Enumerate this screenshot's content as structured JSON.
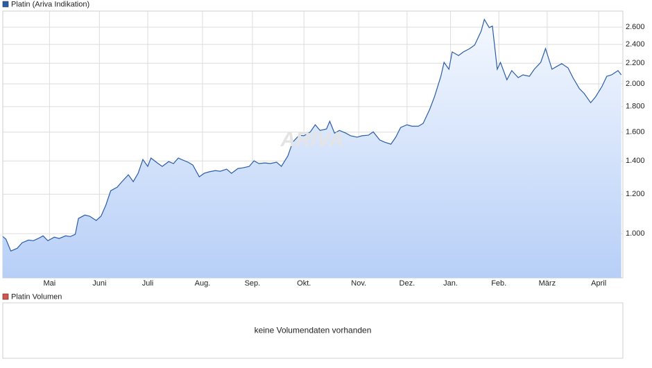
{
  "chart_data": {
    "type": "line",
    "log_scale": true,
    "grid": true,
    "watermark": "ARIVA",
    "series": [
      {
        "name": "Platin (Ariva Indikation)",
        "color": "#2a5ca8",
        "x": [
          0,
          2,
          5,
          9,
          12,
          16,
          19,
          22,
          25,
          28,
          32,
          35,
          39,
          42,
          45,
          47,
          51,
          54,
          58,
          61,
          64,
          67,
          71,
          74,
          78,
          81,
          84,
          87,
          90,
          92,
          96,
          99,
          103,
          106,
          109,
          111,
          115,
          118,
          122,
          125,
          128,
          132,
          135,
          139,
          142,
          146,
          149,
          153,
          156,
          159,
          163,
          166,
          170,
          173,
          177,
          180,
          184,
          187,
          191,
          194,
          197,
          201,
          203,
          206,
          209,
          213,
          216,
          220,
          223,
          227,
          230,
          234,
          237,
          241,
          244,
          247,
          251,
          254,
          258,
          261,
          265,
          268,
          272,
          274,
          277,
          279,
          283,
          286,
          290,
          293,
          297,
          299,
          302,
          304,
          307,
          309,
          313,
          316,
          320,
          323,
          327,
          330,
          334,
          337,
          341,
          344,
          347,
          351,
          354,
          358,
          361,
          365,
          368,
          372,
          375,
          378,
          382,
          384
        ],
        "values": [
          987,
          975,
          923,
          935,
          959,
          971,
          968,
          978,
          990,
          968,
          984,
          978,
          990,
          987,
          997,
          1073,
          1090,
          1084,
          1063,
          1084,
          1141,
          1220,
          1240,
          1272,
          1313,
          1272,
          1322,
          1409,
          1365,
          1419,
          1387,
          1365,
          1396,
          1383,
          1419,
          1409,
          1392,
          1374,
          1301,
          1322,
          1331,
          1339,
          1335,
          1348,
          1322,
          1352,
          1356,
          1365,
          1401,
          1383,
          1387,
          1383,
          1392,
          1365,
          1433,
          1527,
          1577,
          1573,
          1602,
          1655,
          1612,
          1623,
          1682,
          1592,
          1612,
          1592,
          1573,
          1563,
          1573,
          1577,
          1602,
          1543,
          1527,
          1513,
          1563,
          1634,
          1655,
          1644,
          1644,
          1666,
          1776,
          1882,
          2071,
          2209,
          2140,
          2318,
          2280,
          2318,
          2355,
          2394,
          2552,
          2694,
          2594,
          2612,
          2140,
          2209,
          2038,
          2126,
          2058,
          2085,
          2071,
          2140,
          2209,
          2355,
          2140,
          2168,
          2196,
          2153,
          2058,
          1956,
          1912,
          1833,
          1882,
          1975,
          2071,
          2085,
          2126,
          2085
        ]
      }
    ],
    "xlim": [
      0,
      385
    ],
    "xticks": [
      {
        "value": 29,
        "label": "Mai"
      },
      {
        "value": 60,
        "label": "Juni"
      },
      {
        "value": 90,
        "label": "Juli"
      },
      {
        "value": 124,
        "label": "Aug."
      },
      {
        "value": 155,
        "label": "Sep."
      },
      {
        "value": 187,
        "label": "Okt."
      },
      {
        "value": 221,
        "label": "Nov."
      },
      {
        "value": 251,
        "label": "Dez."
      },
      {
        "value": 278,
        "label": "Jan."
      },
      {
        "value": 308,
        "label": "Feb."
      },
      {
        "value": 338,
        "label": "März"
      },
      {
        "value": 370,
        "label": "April"
      }
    ],
    "ylim": [
      815,
      2800
    ],
    "yticks": [
      {
        "value": 1000,
        "label": "1.000"
      },
      {
        "value": 1200,
        "label": "1.200"
      },
      {
        "value": 1400,
        "label": "1.400"
      },
      {
        "value": 1600,
        "label": "1.600"
      },
      {
        "value": 1800,
        "label": "1.800"
      },
      {
        "value": 2000,
        "label": "2.000"
      },
      {
        "value": 2200,
        "label": "2.200"
      },
      {
        "value": 2400,
        "label": "2.400"
      },
      {
        "value": 2600,
        "label": "2.600"
      }
    ]
  },
  "volume_panel": {
    "title": "Platin Volumen",
    "color": "#d9534f",
    "message": "keine Volumendaten vorhanden"
  }
}
